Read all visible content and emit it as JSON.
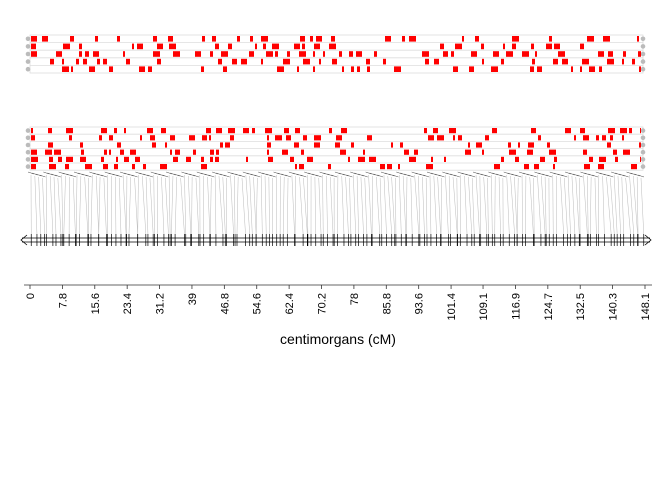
{
  "chart_data": {
    "type": "heatmap",
    "title": "",
    "xlabel": "centimorgans (cM)",
    "xlim": [
      0,
      148.1
    ],
    "x_ticks": [
      0,
      7.8,
      15.6,
      23.4,
      31.2,
      39,
      46.8,
      54.6,
      62.4,
      70.2,
      78,
      85.8,
      93.6,
      101.4,
      109.1,
      116.9,
      124.7,
      132.5,
      140.3,
      148.1
    ],
    "tick_labels": [
      "0",
      "7.8",
      "15.6",
      "23.4",
      "31.2",
      "39",
      "46.8",
      "54.6",
      "62.4",
      "70.2",
      "78",
      "85.8",
      "93.6",
      "101.4",
      "109.1",
      "116.9",
      "124.7",
      "132.5",
      "140.3",
      "148.1"
    ],
    "panels": [
      {
        "name": "",
        "rows": 5
      },
      {
        "name": "",
        "rows": 6
      }
    ],
    "marker_count": 160,
    "colors": {
      "genotype": "#ff0000",
      "grid": "#dddddd",
      "link": "#bbbbbb",
      "axis": "#000000",
      "text": "#000000"
    }
  }
}
